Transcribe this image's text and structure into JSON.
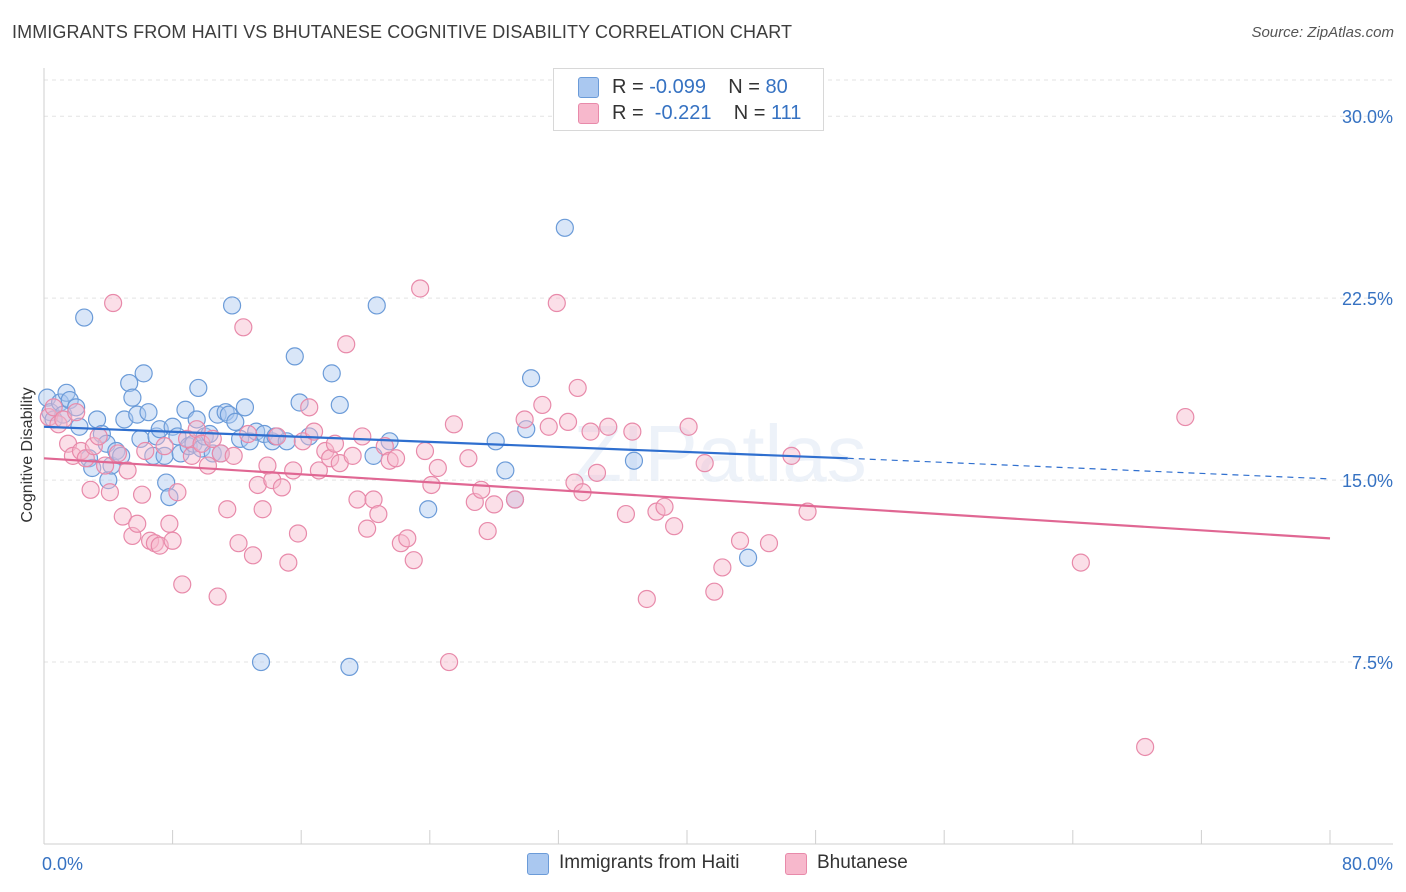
{
  "title": "IMMIGRANTS FROM HAITI VS BHUTANESE COGNITIVE DISABILITY CORRELATION CHART",
  "source": "Source: ZipAtlas.com",
  "watermark": "ZIPatlas",
  "legend_top": [
    {
      "r_label": "R = ",
      "r_value": "-0.099",
      "n_label": "N = ",
      "n_value": "80"
    },
    {
      "r_label": "R = ",
      "r_value": " -0.221",
      "n_label": "N = ",
      "n_value": "111"
    }
  ],
  "legend_bottom": [
    "Immigrants from Haiti",
    "Bhutanese"
  ],
  "chart_data": {
    "type": "scatter",
    "title": "IMMIGRANTS FROM HAITI VS BHUTANESE COGNITIVE DISABILITY CORRELATION CHART",
    "xlabel": "",
    "ylabel": "Cognitive Disability",
    "xlim": [
      0,
      80
    ],
    "ylim": [
      0,
      31.7
    ],
    "x_tick_labels": [
      "0.0%",
      "80.0%"
    ],
    "y_ticks": [
      7.5,
      15.0,
      22.5,
      30.0
    ],
    "y_tick_labels": [
      "7.5%",
      "15.0%",
      "22.5%",
      "30.0%"
    ],
    "grid": true,
    "legend_position": "top-center",
    "colors": {
      "haiti_fill": "#aac8f0",
      "haiti_stroke": "#6b9bd8",
      "haiti_line": "#2f6fcf",
      "bhutanese_fill": "#f7b8cc",
      "bhutanese_stroke": "#e88aaa",
      "bhutanese_line": "#e06793",
      "tick_label": "#3672c2"
    },
    "series": [
      {
        "name": "Immigrants from Haiti",
        "R": -0.099,
        "N": 80,
        "trend": {
          "x0": 0,
          "y0": 17.2,
          "x1": 50,
          "y1": 15.9,
          "dash_to_x": 80,
          "dash_to_y": 15.05
        },
        "points": [
          [
            0.2,
            18.4
          ],
          [
            0.4,
            17.8
          ],
          [
            0.6,
            17.5
          ],
          [
            1.0,
            18.2
          ],
          [
            1.2,
            17.7
          ],
          [
            1.4,
            18.6
          ],
          [
            1.6,
            18.3
          ],
          [
            2.0,
            18.0
          ],
          [
            2.5,
            21.7
          ],
          [
            2.2,
            17.2
          ],
          [
            2.8,
            15.9
          ],
          [
            3.0,
            15.5
          ],
          [
            3.3,
            17.5
          ],
          [
            3.6,
            16.9
          ],
          [
            3.9,
            16.5
          ],
          [
            4.0,
            15.0
          ],
          [
            4.2,
            15.6
          ],
          [
            4.5,
            16.2
          ],
          [
            4.8,
            16.0
          ],
          [
            5.0,
            17.5
          ],
          [
            5.3,
            19.0
          ],
          [
            5.5,
            18.4
          ],
          [
            5.8,
            17.7
          ],
          [
            6.0,
            16.7
          ],
          [
            6.2,
            19.4
          ],
          [
            6.5,
            17.8
          ],
          [
            6.8,
            16.0
          ],
          [
            7.0,
            16.8
          ],
          [
            7.2,
            17.1
          ],
          [
            7.5,
            16.0
          ],
          [
            7.6,
            14.9
          ],
          [
            7.8,
            14.3
          ],
          [
            8.0,
            17.2
          ],
          [
            8.3,
            16.8
          ],
          [
            8.5,
            16.1
          ],
          [
            8.8,
            17.9
          ],
          [
            9.0,
            16.4
          ],
          [
            9.3,
            16.5
          ],
          [
            9.5,
            17.5
          ],
          [
            9.6,
            18.8
          ],
          [
            9.8,
            16.3
          ],
          [
            10.0,
            16.8
          ],
          [
            10.3,
            16.9
          ],
          [
            10.5,
            16.1
          ],
          [
            10.8,
            17.7
          ],
          [
            11.0,
            16.1
          ],
          [
            11.3,
            17.8
          ],
          [
            11.5,
            17.7
          ],
          [
            11.7,
            22.2
          ],
          [
            11.9,
            17.4
          ],
          [
            12.2,
            16.7
          ],
          [
            12.5,
            18.0
          ],
          [
            12.8,
            16.6
          ],
          [
            13.2,
            17.0
          ],
          [
            13.5,
            7.5
          ],
          [
            13.7,
            16.9
          ],
          [
            14.2,
            16.6
          ],
          [
            14.4,
            16.8
          ],
          [
            15.1,
            16.6
          ],
          [
            15.6,
            20.1
          ],
          [
            15.9,
            18.2
          ],
          [
            16.5,
            16.8
          ],
          [
            17.9,
            19.4
          ],
          [
            18.4,
            18.1
          ],
          [
            19.0,
            7.3
          ],
          [
            20.5,
            16.0
          ],
          [
            20.7,
            22.2
          ],
          [
            21.5,
            16.6
          ],
          [
            23.9,
            13.8
          ],
          [
            28.1,
            16.6
          ],
          [
            28.7,
            15.4
          ],
          [
            29.3,
            14.2
          ],
          [
            30.3,
            19.2
          ],
          [
            30.0,
            17.1
          ],
          [
            32.4,
            25.4
          ],
          [
            36.7,
            15.8
          ],
          [
            43.8,
            11.8
          ]
        ]
      },
      {
        "name": "Bhutanese",
        "R": -0.221,
        "N": 111,
        "trend": {
          "x0": 0,
          "y0": 15.9,
          "x1": 80,
          "y1": 12.6
        },
        "points": [
          [
            0.3,
            17.6
          ],
          [
            0.6,
            18.0
          ],
          [
            0.9,
            17.3
          ],
          [
            1.2,
            17.5
          ],
          [
            1.5,
            16.5
          ],
          [
            1.8,
            16.0
          ],
          [
            2.0,
            17.8
          ],
          [
            2.3,
            16.2
          ],
          [
            2.6,
            15.9
          ],
          [
            2.9,
            14.6
          ],
          [
            3.1,
            16.4
          ],
          [
            3.4,
            16.8
          ],
          [
            3.8,
            15.6
          ],
          [
            4.1,
            14.5
          ],
          [
            4.3,
            22.3
          ],
          [
            4.6,
            16.1
          ],
          [
            4.9,
            13.5
          ],
          [
            5.2,
            15.4
          ],
          [
            5.5,
            12.7
          ],
          [
            5.8,
            13.2
          ],
          [
            6.1,
            14.4
          ],
          [
            6.3,
            16.2
          ],
          [
            6.6,
            12.5
          ],
          [
            6.9,
            12.4
          ],
          [
            7.2,
            12.3
          ],
          [
            7.5,
            16.4
          ],
          [
            7.8,
            13.2
          ],
          [
            8.0,
            12.5
          ],
          [
            8.3,
            14.5
          ],
          [
            8.6,
            10.7
          ],
          [
            8.9,
            16.7
          ],
          [
            9.2,
            16.0
          ],
          [
            9.5,
            17.1
          ],
          [
            9.8,
            16.5
          ],
          [
            10.2,
            15.6
          ],
          [
            10.5,
            16.7
          ],
          [
            10.8,
            10.2
          ],
          [
            11.0,
            16.1
          ],
          [
            11.4,
            13.8
          ],
          [
            11.8,
            16.0
          ],
          [
            12.1,
            12.4
          ],
          [
            12.4,
            21.3
          ],
          [
            12.7,
            16.9
          ],
          [
            13.0,
            11.9
          ],
          [
            13.3,
            14.8
          ],
          [
            13.6,
            13.8
          ],
          [
            13.9,
            15.6
          ],
          [
            14.2,
            15.0
          ],
          [
            14.5,
            16.8
          ],
          [
            14.8,
            14.7
          ],
          [
            15.2,
            11.6
          ],
          [
            15.5,
            15.4
          ],
          [
            15.8,
            12.8
          ],
          [
            16.1,
            16.6
          ],
          [
            16.5,
            18.0
          ],
          [
            16.8,
            17.0
          ],
          [
            17.1,
            15.4
          ],
          [
            17.5,
            16.2
          ],
          [
            17.8,
            15.9
          ],
          [
            18.1,
            16.5
          ],
          [
            18.4,
            15.7
          ],
          [
            18.8,
            20.6
          ],
          [
            19.2,
            16.0
          ],
          [
            19.5,
            14.2
          ],
          [
            19.8,
            16.8
          ],
          [
            20.1,
            13.0
          ],
          [
            20.5,
            14.2
          ],
          [
            20.8,
            13.6
          ],
          [
            21.2,
            16.4
          ],
          [
            21.5,
            15.8
          ],
          [
            21.9,
            15.9
          ],
          [
            22.2,
            12.4
          ],
          [
            22.6,
            12.6
          ],
          [
            23.0,
            11.7
          ],
          [
            23.4,
            22.9
          ],
          [
            23.7,
            16.2
          ],
          [
            24.1,
            14.8
          ],
          [
            24.5,
            15.5
          ],
          [
            25.2,
            7.5
          ],
          [
            25.5,
            17.3
          ],
          [
            26.4,
            15.9
          ],
          [
            26.8,
            14.1
          ],
          [
            27.2,
            14.6
          ],
          [
            27.6,
            12.9
          ],
          [
            28.0,
            14.0
          ],
          [
            29.3,
            14.2
          ],
          [
            29.9,
            17.5
          ],
          [
            31.0,
            18.1
          ],
          [
            31.4,
            17.2
          ],
          [
            31.9,
            22.3
          ],
          [
            32.6,
            17.4
          ],
          [
            33.0,
            14.9
          ],
          [
            33.2,
            18.8
          ],
          [
            33.5,
            14.5
          ],
          [
            34.0,
            17.0
          ],
          [
            34.4,
            15.3
          ],
          [
            35.1,
            17.2
          ],
          [
            36.2,
            13.6
          ],
          [
            36.6,
            17.0
          ],
          [
            37.5,
            10.1
          ],
          [
            38.1,
            13.7
          ],
          [
            38.6,
            13.9
          ],
          [
            39.2,
            13.1
          ],
          [
            40.1,
            17.2
          ],
          [
            41.1,
            15.7
          ],
          [
            41.7,
            10.4
          ],
          [
            42.2,
            11.4
          ],
          [
            43.3,
            12.5
          ],
          [
            45.1,
            12.4
          ],
          [
            46.5,
            16.0
          ],
          [
            47.5,
            13.7
          ],
          [
            64.5,
            11.6
          ],
          [
            68.5,
            4.0
          ],
          [
            71.0,
            17.6
          ]
        ]
      }
    ]
  }
}
